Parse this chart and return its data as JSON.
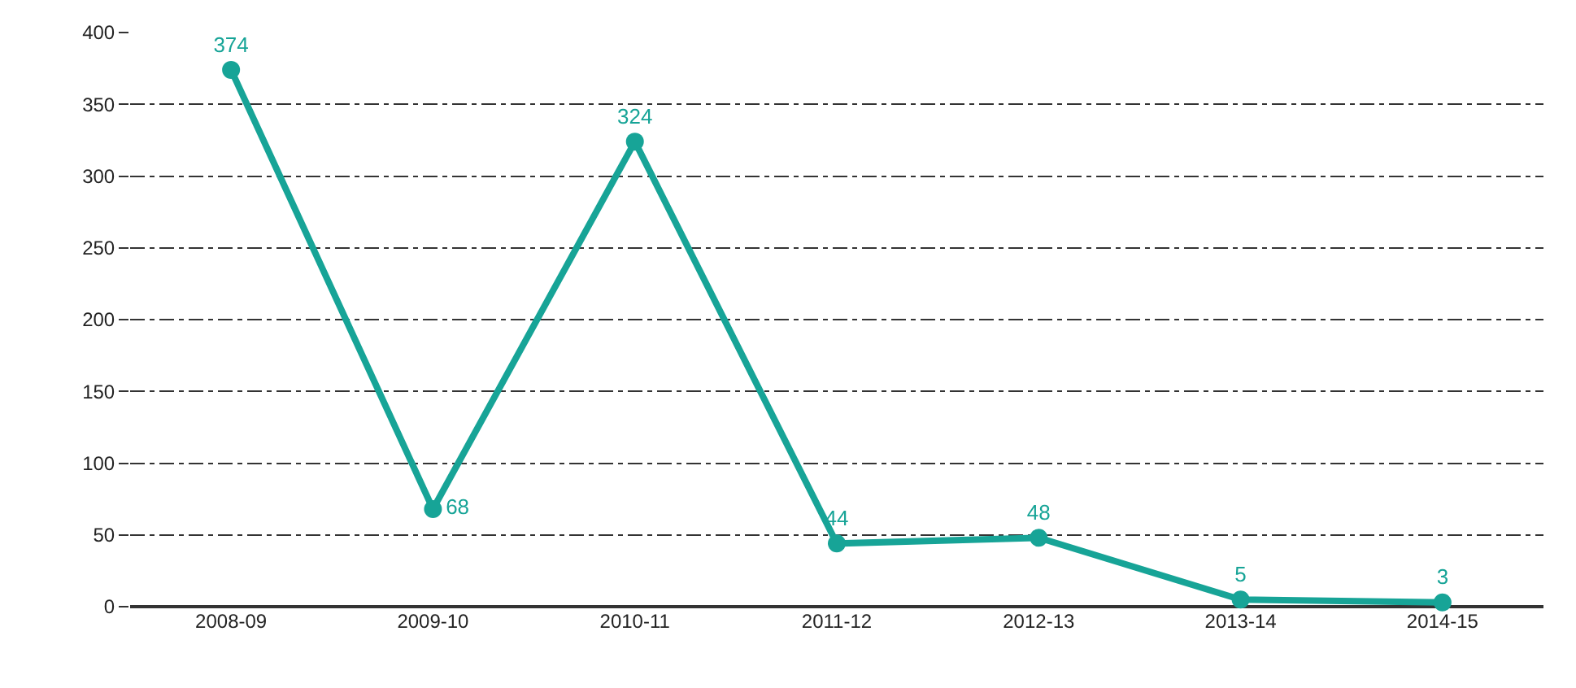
{
  "chart_data": {
    "type": "line",
    "categories": [
      "2008-09",
      "2009-10",
      "2010-11",
      "2011-12",
      "2012-13",
      "2013-14",
      "2014-15"
    ],
    "series": [
      {
        "color": "#17a497",
        "values": [
          374,
          68,
          324,
          44,
          48,
          5,
          3
        ]
      }
    ],
    "ylim": [
      0,
      400
    ],
    "yticks": [
      0,
      50,
      100,
      150,
      200,
      250,
      300,
      350,
      400
    ],
    "grid": "y",
    "data_labels": true,
    "marker": "circle",
    "line_style": "solid",
    "legend": false
  }
}
